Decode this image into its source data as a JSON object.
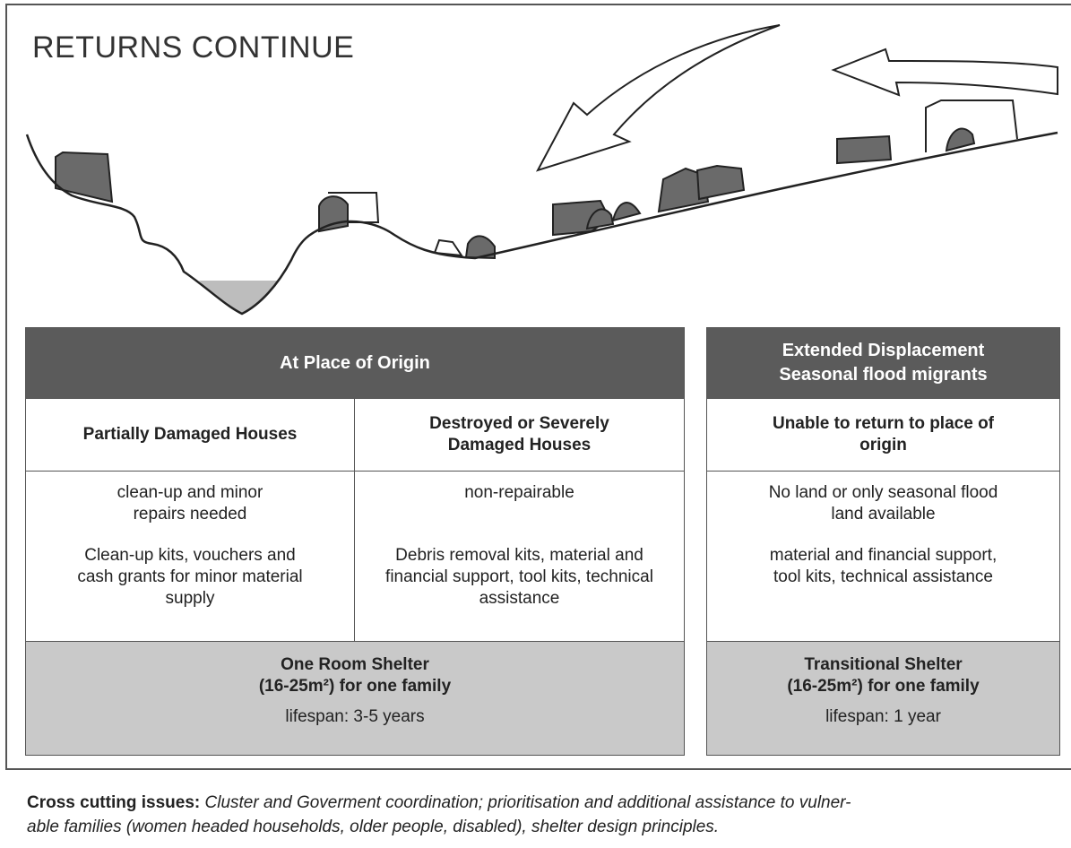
{
  "title": "RETURNS CONTINUE",
  "left": {
    "header": "At Place of Origin",
    "columns": [
      {
        "heading": "Partially Damaged Houses",
        "need": "clean-up and minor repairs needed",
        "support": "Clean-up kits, vouchers and cash grants for minor material supply"
      },
      {
        "heading": "Destroyed  or Severely Damaged Houses",
        "need": "non-repairable",
        "support": "Debris removal kits, material and financial support, tool kits, technical assistance"
      }
    ],
    "shelter": {
      "name": "One Room Shelter",
      "size": "(16-25m²) for one family",
      "lifespan": "lifespan: 3-5 years"
    }
  },
  "right": {
    "header": [
      "Extended Displacement",
      "Seasonal flood migrants"
    ],
    "heading": "Unable to return to place of origin",
    "need": "No land or only seasonal flood land available",
    "support": "material and financial support, tool kits, technical assistance",
    "shelter": {
      "name": "Transitional Shelter",
      "size": "(16-25m²) for one family",
      "lifespan": "lifespan: 1 year"
    }
  },
  "footer": {
    "label": "Cross cutting issues:",
    "lines": [
      "Cluster and Goverment coordination; prioritisation and additional assistance to vulner-",
      "able families (women headed households, older people, disabled), shelter design principles."
    ]
  }
}
